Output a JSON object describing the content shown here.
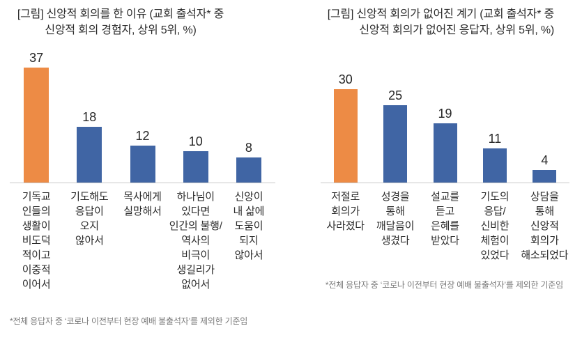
{
  "colors": {
    "highlight_bar": "#ED8B45",
    "default_bar": "#4065A4",
    "axis_line": "#C8C8C8",
    "text": "#2B2B2B",
    "footnote_text": "#7A7A7A"
  },
  "chart_data": [
    {
      "type": "bar",
      "title": "[그림] 신앙적 회의를 한 이유 (교회 출석자* 중 신앙적 회의 경험자, 상위 5위, %)",
      "title_lines": [
        "[그림] 신앙적 회의를 한 이유 (교회 출석자* 중",
        "신앙적 회의 경험자, 상위 5위, %)"
      ],
      "categories": [
        "기독교인들의 생활이 비도덕적이고 이중적이어서",
        "기도해도 응답이 오지 않아서",
        "목사에게 실망해서",
        "하나님이 있다면 인간의 불행/역사의 비극이 생길리가 없어서",
        "신앙이 내 삶에 도움이 되지 않아서"
      ],
      "category_lines": [
        [
          "기독교",
          "인들의",
          "생활이",
          "비도덕",
          "적이고",
          "이중적",
          "이어서"
        ],
        [
          "기도해도",
          "응답이",
          "오지",
          "않아서"
        ],
        [
          "목사에게",
          "실망해서"
        ],
        [
          "하나님이",
          "있다면",
          "인간의 불행/",
          "역사의",
          "비극이",
          "생길리가",
          "없어서"
        ],
        [
          "신앙이",
          "내 삶에",
          "도움이",
          "되지",
          "않아서"
        ]
      ],
      "values": [
        37,
        18,
        12,
        10,
        8
      ],
      "bar_colors": [
        "#ED8B45",
        "#4065A4",
        "#4065A4",
        "#4065A4",
        "#4065A4"
      ],
      "unit": "%",
      "value_labels": true,
      "y_axis_visible": false,
      "legend": "none",
      "footnote": "*전체 응답자 중 ‘코로나 이전부터 현장 예배 불출석자’를 제외한 기준임"
    },
    {
      "type": "bar",
      "title": "[그림] 신앙적 회의가 없어진 계기 (교회 출석자* 중 신앙적 회의가 없어진 응답자, 상위 5위, %)",
      "title_lines": [
        "[그림] 신앙적 회의가 없어진 계기 (교회 출석자* 중",
        "신앙적 회의가 없어진 응답자, 상위 5위, %)"
      ],
      "categories": [
        "저절로 회의가 사라졌다",
        "성경을 통해 깨달음이 생겼다",
        "설교를 듣고 은혜를 받았다",
        "기도의 응답/신비한 체험이 있었다",
        "상담을 통해 신앙적 회의가 해소되었다"
      ],
      "category_lines": [
        [
          "저절로",
          "회의가",
          "사라졌다"
        ],
        [
          "성경을",
          "통해",
          "깨달음이",
          "생겼다"
        ],
        [
          "설교를",
          "듣고",
          "은혜를",
          "받았다"
        ],
        [
          "기도의",
          "응답/",
          "신비한",
          "체험이",
          "있었다"
        ],
        [
          "상담을",
          "통해",
          "신앙적",
          "회의가",
          "해소되었다"
        ]
      ],
      "values": [
        30,
        25,
        19,
        11,
        4
      ],
      "bar_colors": [
        "#ED8B45",
        "#4065A4",
        "#4065A4",
        "#4065A4",
        "#4065A4"
      ],
      "unit": "%",
      "value_labels": true,
      "y_axis_visible": false,
      "legend": "none",
      "footnote": "*전체 응답자 중 ‘코로나 이전부터 현장 예배 불출석자’를 제외한 기준임"
    }
  ]
}
